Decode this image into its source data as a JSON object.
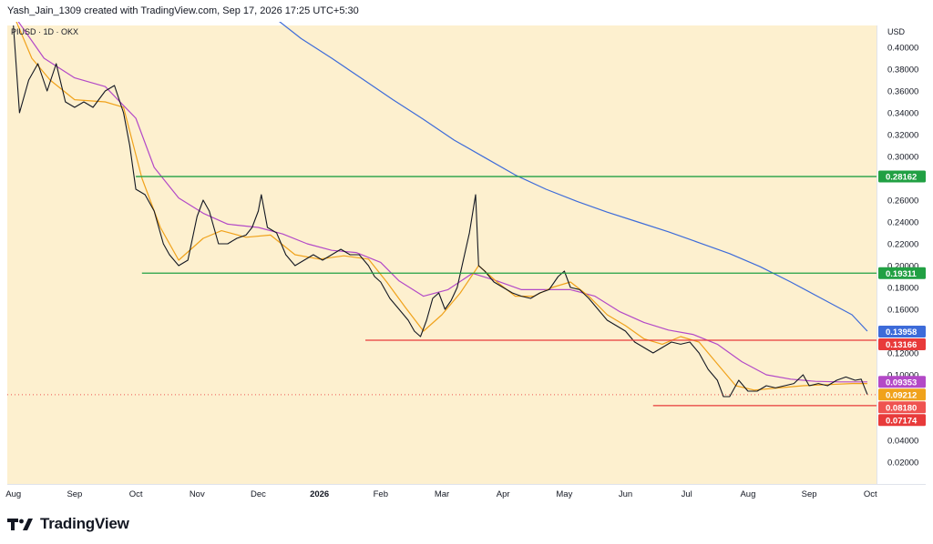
{
  "header": {
    "attribution": "Yash_Jain_1309 created with TradingView.com, Sep 17, 2026 17:25 UTC+5:30"
  },
  "footer": {
    "brand": "TradingView",
    "logo_icon": "tradingview-logo-icon"
  },
  "colors": {
    "plot_bg": "#fdf0cf",
    "up": "#26a69a",
    "down": "#ef5350",
    "ema_short": "#f0a21b",
    "ema_mid": "#b349c7",
    "ema_long": "#3d6bd9",
    "support_green": "#21a043",
    "support_red": "#e83a3a"
  },
  "chart_data": {
    "type": "candlestick",
    "symbol_label": "PIUSD · 1D · OKX",
    "currency": "USD",
    "y_axis": {
      "range": [
        0.0,
        0.42
      ],
      "ticks": [
        0.02,
        0.04,
        0.06,
        0.08,
        0.1,
        0.12,
        0.14,
        0.16,
        0.18,
        0.2,
        0.22,
        0.24,
        0.26,
        0.28,
        0.3,
        0.32,
        0.34,
        0.36,
        0.38,
        0.4
      ],
      "tick_labels": [
        "0.02000",
        "0.04000",
        "0.06000",
        "0.08000",
        "0.10000",
        "0.12000",
        "0.14000",
        "0.16000",
        "0.18000",
        "0.20000",
        "0.22000",
        "0.24000",
        "0.26000",
        "0.28000",
        "0.30000",
        "0.32000",
        "0.34000",
        "0.36000",
        "0.38000",
        "0.40000"
      ]
    },
    "x_axis": {
      "labels": [
        "Aug",
        "Sep",
        "Oct",
        "Nov",
        "Dec",
        "2026",
        "Feb",
        "Mar",
        "Apr",
        "May",
        "Jun",
        "Jul",
        "Aug",
        "Sep",
        "Oct"
      ],
      "positions": [
        0,
        1,
        2,
        3,
        4,
        5,
        6,
        7,
        8,
        9,
        10,
        11,
        12,
        13,
        14
      ],
      "bold": [
        false,
        false,
        false,
        false,
        false,
        true,
        false,
        false,
        false,
        false,
        false,
        false,
        false,
        false,
        false
      ]
    },
    "horizontal_levels": [
      {
        "value": 0.28162,
        "label": "0.28162",
        "color": "#21a043",
        "x_from": 2.0
      },
      {
        "value": 0.19311,
        "label": "0.19311",
        "color": "#21a043",
        "x_from": 2.1
      },
      {
        "value": 0.13166,
        "label": "0.13166",
        "color": "#e83a3a",
        "x_from": 5.75
      },
      {
        "value": 0.07174,
        "label": "0.07174",
        "color": "#e83a3a",
        "x_from": 10.45
      }
    ],
    "price_badges": [
      {
        "value": 0.13958,
        "label": "0.13958",
        "color": "#3d6bd9"
      },
      {
        "value": 0.09353,
        "label": "0.09353",
        "color": "#b349c7"
      },
      {
        "value": 0.09212,
        "label": "0.09212",
        "color": "#f0a21b"
      },
      {
        "value": 0.0818,
        "label": "0.08180",
        "color": "#ef5350"
      }
    ],
    "price_line": 0.0818,
    "series": [
      {
        "kind": "ema_long",
        "color": "#3d6bd9",
        "points": [
          [
            4.2,
            0.43
          ],
          [
            4.7,
            0.408
          ],
          [
            5.2,
            0.39
          ],
          [
            5.7,
            0.371
          ],
          [
            6.2,
            0.352
          ],
          [
            6.7,
            0.334
          ],
          [
            7.2,
            0.315
          ],
          [
            7.7,
            0.299
          ],
          [
            8.2,
            0.283
          ],
          [
            8.7,
            0.27
          ],
          [
            9.2,
            0.259
          ],
          [
            9.7,
            0.249
          ],
          [
            10.2,
            0.24
          ],
          [
            10.7,
            0.231
          ],
          [
            11.2,
            0.221
          ],
          [
            11.7,
            0.211
          ],
          [
            12.2,
            0.199
          ],
          [
            12.7,
            0.185
          ],
          [
            13.2,
            0.17
          ],
          [
            13.7,
            0.155
          ],
          [
            13.95,
            0.14
          ]
        ]
      },
      {
        "kind": "ema_mid",
        "color": "#b349c7",
        "points": [
          [
            0,
            0.43
          ],
          [
            0.5,
            0.39
          ],
          [
            1.0,
            0.372
          ],
          [
            1.5,
            0.364
          ],
          [
            2.0,
            0.335
          ],
          [
            2.3,
            0.29
          ],
          [
            2.7,
            0.262
          ],
          [
            3.1,
            0.248
          ],
          [
            3.5,
            0.238
          ],
          [
            4.0,
            0.235
          ],
          [
            4.4,
            0.229
          ],
          [
            4.8,
            0.22
          ],
          [
            5.2,
            0.214
          ],
          [
            5.6,
            0.212
          ],
          [
            6.0,
            0.203
          ],
          [
            6.3,
            0.186
          ],
          [
            6.7,
            0.172
          ],
          [
            7.1,
            0.178
          ],
          [
            7.5,
            0.193
          ],
          [
            7.9,
            0.186
          ],
          [
            8.3,
            0.178
          ],
          [
            8.7,
            0.178
          ],
          [
            9.1,
            0.178
          ],
          [
            9.5,
            0.172
          ],
          [
            9.9,
            0.158
          ],
          [
            10.3,
            0.148
          ],
          [
            10.7,
            0.141
          ],
          [
            11.1,
            0.137
          ],
          [
            11.5,
            0.128
          ],
          [
            11.9,
            0.112
          ],
          [
            12.3,
            0.1
          ],
          [
            12.7,
            0.096
          ],
          [
            13.1,
            0.094
          ],
          [
            13.5,
            0.0935
          ],
          [
            13.95,
            0.0935
          ]
        ]
      },
      {
        "kind": "ema_short",
        "color": "#f0a21b",
        "points": [
          [
            0,
            0.43
          ],
          [
            0.3,
            0.39
          ],
          [
            0.6,
            0.37
          ],
          [
            1.0,
            0.352
          ],
          [
            1.5,
            0.35
          ],
          [
            1.8,
            0.345
          ],
          [
            2.1,
            0.28
          ],
          [
            2.4,
            0.235
          ],
          [
            2.7,
            0.205
          ],
          [
            3.1,
            0.225
          ],
          [
            3.4,
            0.232
          ],
          [
            3.8,
            0.226
          ],
          [
            4.2,
            0.228
          ],
          [
            4.6,
            0.21
          ],
          [
            5.0,
            0.206
          ],
          [
            5.4,
            0.209
          ],
          [
            5.8,
            0.206
          ],
          [
            6.1,
            0.185
          ],
          [
            6.4,
            0.162
          ],
          [
            6.7,
            0.14
          ],
          [
            7.0,
            0.155
          ],
          [
            7.3,
            0.175
          ],
          [
            7.6,
            0.2
          ],
          [
            7.9,
            0.185
          ],
          [
            8.2,
            0.172
          ],
          [
            8.5,
            0.172
          ],
          [
            8.8,
            0.18
          ],
          [
            9.1,
            0.185
          ],
          [
            9.4,
            0.172
          ],
          [
            9.7,
            0.155
          ],
          [
            10.0,
            0.145
          ],
          [
            10.3,
            0.133
          ],
          [
            10.6,
            0.128
          ],
          [
            10.9,
            0.135
          ],
          [
            11.2,
            0.13
          ],
          [
            11.5,
            0.11
          ],
          [
            11.8,
            0.09
          ],
          [
            12.1,
            0.086
          ],
          [
            12.5,
            0.088
          ],
          [
            12.9,
            0.09
          ],
          [
            13.3,
            0.091
          ],
          [
            13.7,
            0.092
          ],
          [
            13.95,
            0.092
          ]
        ]
      },
      {
        "kind": "close",
        "color": "#131722",
        "points": [
          [
            0,
            0.42
          ],
          [
            0.1,
            0.34
          ],
          [
            0.25,
            0.37
          ],
          [
            0.4,
            0.385
          ],
          [
            0.55,
            0.36
          ],
          [
            0.7,
            0.385
          ],
          [
            0.85,
            0.35
          ],
          [
            1.0,
            0.345
          ],
          [
            1.15,
            0.35
          ],
          [
            1.3,
            0.345
          ],
          [
            1.5,
            0.36
          ],
          [
            1.65,
            0.365
          ],
          [
            1.8,
            0.34
          ],
          [
            1.9,
            0.31
          ],
          [
            2.0,
            0.27
          ],
          [
            2.15,
            0.265
          ],
          [
            2.3,
            0.25
          ],
          [
            2.45,
            0.22
          ],
          [
            2.55,
            0.21
          ],
          [
            2.7,
            0.2
          ],
          [
            2.85,
            0.205
          ],
          [
            3.0,
            0.245
          ],
          [
            3.1,
            0.26
          ],
          [
            3.2,
            0.25
          ],
          [
            3.35,
            0.22
          ],
          [
            3.5,
            0.22
          ],
          [
            3.65,
            0.225
          ],
          [
            3.8,
            0.228
          ],
          [
            3.9,
            0.235
          ],
          [
            4.0,
            0.25
          ],
          [
            4.05,
            0.265
          ],
          [
            4.15,
            0.235
          ],
          [
            4.3,
            0.23
          ],
          [
            4.45,
            0.21
          ],
          [
            4.6,
            0.2
          ],
          [
            4.75,
            0.205
          ],
          [
            4.9,
            0.21
          ],
          [
            5.05,
            0.205
          ],
          [
            5.2,
            0.21
          ],
          [
            5.35,
            0.215
          ],
          [
            5.5,
            0.21
          ],
          [
            5.65,
            0.21
          ],
          [
            5.8,
            0.2
          ],
          [
            5.9,
            0.19
          ],
          [
            6.0,
            0.185
          ],
          [
            6.15,
            0.17
          ],
          [
            6.3,
            0.16
          ],
          [
            6.45,
            0.15
          ],
          [
            6.55,
            0.14
          ],
          [
            6.65,
            0.135
          ],
          [
            6.75,
            0.15
          ],
          [
            6.85,
            0.17
          ],
          [
            6.95,
            0.175
          ],
          [
            7.05,
            0.16
          ],
          [
            7.15,
            0.168
          ],
          [
            7.25,
            0.18
          ],
          [
            7.35,
            0.205
          ],
          [
            7.45,
            0.23
          ],
          [
            7.55,
            0.265
          ],
          [
            7.6,
            0.2
          ],
          [
            7.7,
            0.195
          ],
          [
            7.85,
            0.185
          ],
          [
            8.0,
            0.18
          ],
          [
            8.15,
            0.175
          ],
          [
            8.3,
            0.172
          ],
          [
            8.45,
            0.17
          ],
          [
            8.6,
            0.175
          ],
          [
            8.75,
            0.178
          ],
          [
            8.9,
            0.19
          ],
          [
            9.0,
            0.195
          ],
          [
            9.1,
            0.18
          ],
          [
            9.25,
            0.178
          ],
          [
            9.4,
            0.17
          ],
          [
            9.55,
            0.16
          ],
          [
            9.7,
            0.15
          ],
          [
            9.85,
            0.145
          ],
          [
            10.0,
            0.14
          ],
          [
            10.15,
            0.13
          ],
          [
            10.3,
            0.125
          ],
          [
            10.45,
            0.12
          ],
          [
            10.6,
            0.125
          ],
          [
            10.75,
            0.13
          ],
          [
            10.9,
            0.128
          ],
          [
            11.05,
            0.13
          ],
          [
            11.2,
            0.12
          ],
          [
            11.35,
            0.105
          ],
          [
            11.5,
            0.095
          ],
          [
            11.6,
            0.08
          ],
          [
            11.7,
            0.08
          ],
          [
            11.85,
            0.095
          ],
          [
            12.0,
            0.085
          ],
          [
            12.15,
            0.085
          ],
          [
            12.3,
            0.09
          ],
          [
            12.45,
            0.088
          ],
          [
            12.6,
            0.09
          ],
          [
            12.75,
            0.092
          ],
          [
            12.9,
            0.1
          ],
          [
            13.0,
            0.09
          ],
          [
            13.15,
            0.092
          ],
          [
            13.3,
            0.09
          ],
          [
            13.45,
            0.095
          ],
          [
            13.6,
            0.098
          ],
          [
            13.75,
            0.095
          ],
          [
            13.85,
            0.096
          ],
          [
            13.95,
            0.082
          ]
        ]
      }
    ]
  }
}
